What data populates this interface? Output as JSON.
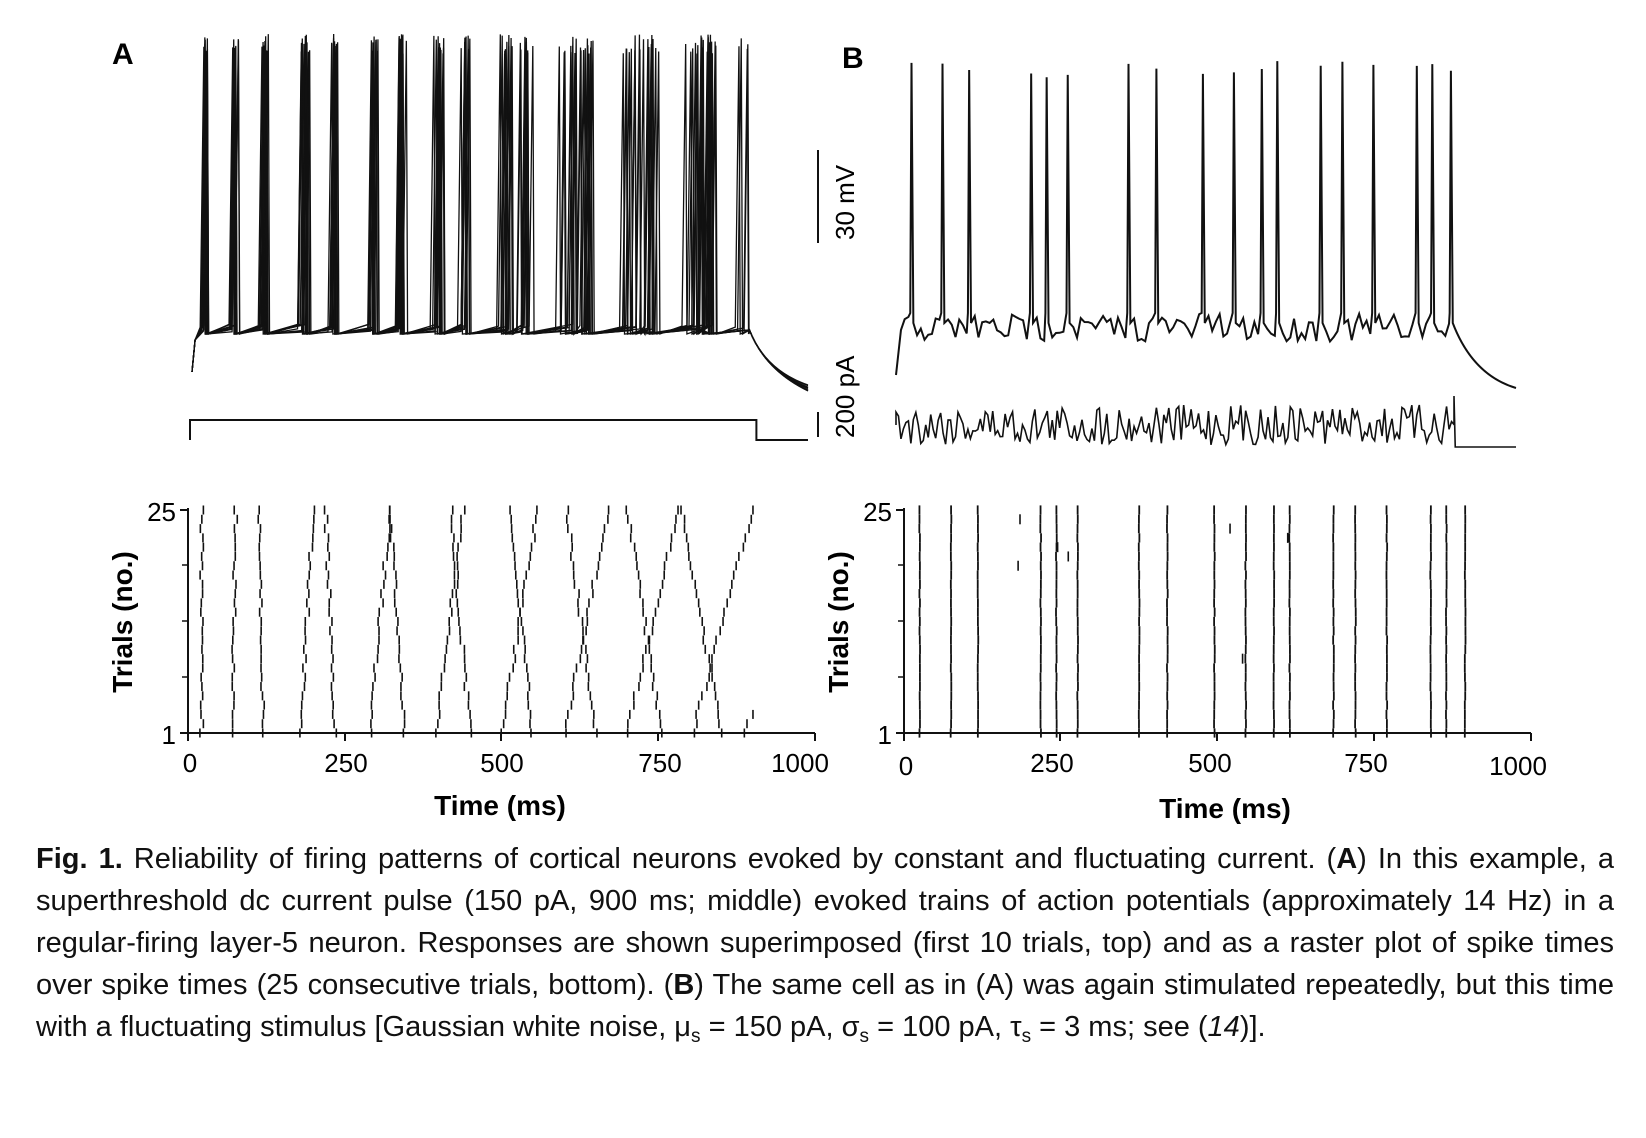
{
  "figure": {
    "panels": [
      {
        "letter": "A",
        "x_ticks": [
          "0",
          "250",
          "500",
          "750",
          "1000"
        ],
        "y_ticks": [
          "25",
          "1"
        ],
        "xlabel": "Time (ms)",
        "ylabel": "Trials (no.)"
      },
      {
        "letter": "B",
        "x_ticks": [
          "0",
          "250",
          "500",
          "750",
          "1000"
        ],
        "y_ticks": [
          "25",
          "1"
        ],
        "xlabel": "Time (ms)",
        "ylabel": "Trials (no.)"
      }
    ],
    "scale_bars": {
      "voltage": "30 mV",
      "current": "200 pA"
    }
  },
  "caption": {
    "label": "Fig. 1.",
    "p1": " Reliability of firing patterns of cortical neurons evoked by constant and fluctuating current. (",
    "A": "A",
    "p2": ") In this example, a superthreshold dc current pulse (150 pA, 900 ms; middle) evoked trains of action potentials (approximately 14 Hz) in a regular-firing layer-5 neuron. Responses are shown superimposed (first 10 trials, top) and as a raster plot of spike times over spike times (25 consecutive trials, bottom). (",
    "B": "B",
    "p3": ") The same cell as in (A) was again stimulated repeatedly, but this time with a fluctuating stimulus [Gaussian white noise, μ",
    "sub1": "s",
    "p4": " = 150 pA, σ",
    "sub2": "s",
    "p5": " = 100 pA, τ",
    "sub3": "s",
    "p6": " = 3 ms; see (",
    "ref": "14",
    "p7": ")]."
  },
  "chart_data": [
    {
      "type": "scatter",
      "panel": "A",
      "description_source": "raster plot of spike times, constant dc current pulse",
      "xlabel": "Time (ms)",
      "ylabel": "Trials (no.)",
      "xlim": [
        0,
        1000
      ],
      "ylim": [
        1,
        25
      ],
      "stimulus": {
        "amplitude_pA": 150,
        "duration_ms": 900
      },
      "spike_clusters_ms_trial1": [
        22,
        70,
        120,
        180,
        235,
        290,
        345,
        395,
        450,
        500,
        550,
        600,
        650,
        700,
        755,
        805,
        850,
        890
      ],
      "drift_ms_per_trial": 1.6
    },
    {
      "type": "scatter",
      "panel": "B",
      "description_source": "raster plot of spike times, fluctuating current stimulus",
      "xlabel": "Time (ms)",
      "ylabel": "Trials (no.)",
      "xlim": [
        0,
        1000
      ],
      "ylim": [
        1,
        25
      ],
      "stimulus": {
        "mean_pA": 150,
        "sd_pA": 100,
        "tau_ms": 3
      },
      "spike_times_ms": [
        25,
        75,
        118,
        218,
        243,
        277,
        375,
        420,
        495,
        545,
        590,
        615,
        685,
        720,
        770,
        840,
        865,
        895
      ]
    }
  ]
}
